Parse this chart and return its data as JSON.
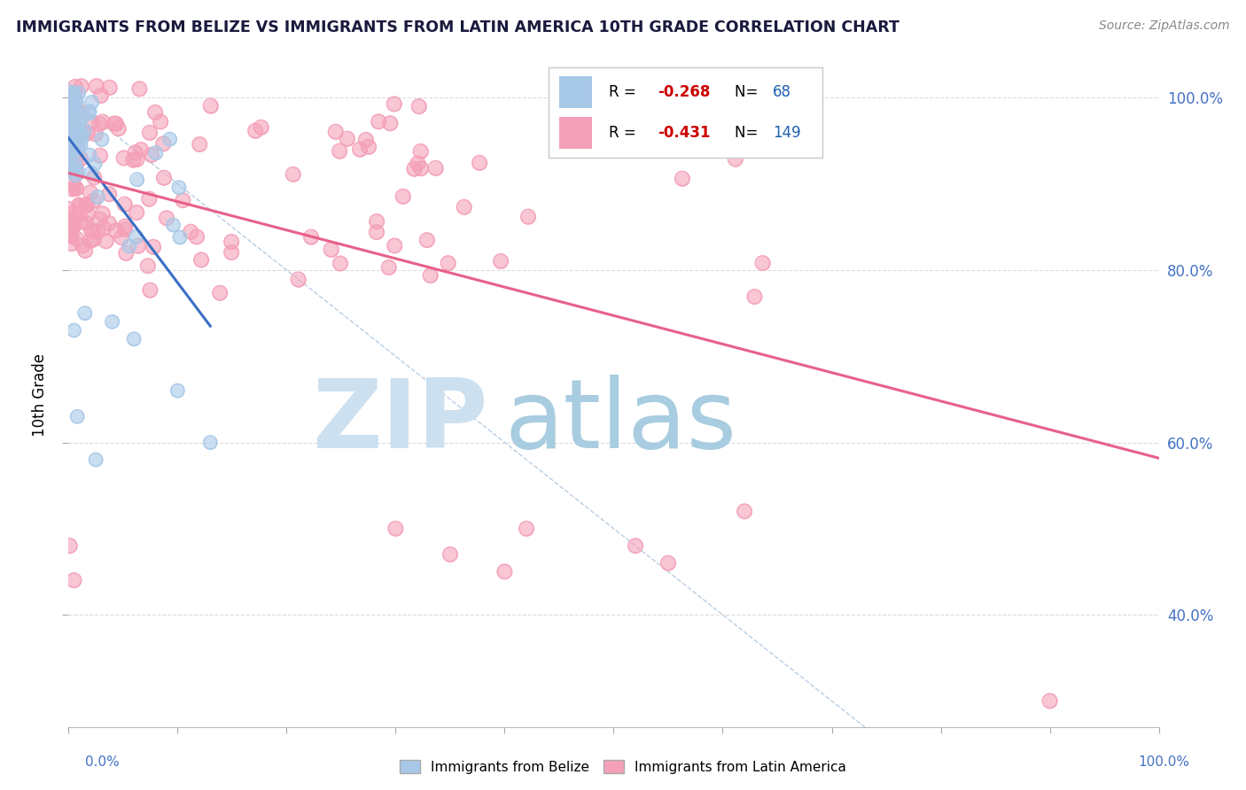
{
  "title": "IMMIGRANTS FROM BELIZE VS IMMIGRANTS FROM LATIN AMERICA 10TH GRADE CORRELATION CHART",
  "source_text": "Source: ZipAtlas.com",
  "ylabel": "10th Grade",
  "belize_R": -0.268,
  "belize_N": 68,
  "latam_R": -0.431,
  "latam_N": 149,
  "belize_color": "#a8c8e8",
  "latam_color": "#f4a0b8",
  "belize_trend_color": "#3a6fc4",
  "latam_trend_color": "#e8608a",
  "diagonal_color": "#b0c8e0",
  "watermark_zip_color": "#cce0f0",
  "watermark_atlas_color": "#a8cce0",
  "title_color": "#1a1a3e",
  "source_color": "#888888",
  "axis_label_color": "#4472c4",
  "grid_color": "#d8d8d8",
  "xlim": [
    0.0,
    1.0
  ],
  "ylim": [
    0.27,
    1.04
  ],
  "yticks": [
    0.4,
    0.6,
    0.8,
    1.0
  ],
  "ytick_labels": [
    "40.0%",
    "60.0%",
    "80.0%",
    "100.0%"
  ]
}
